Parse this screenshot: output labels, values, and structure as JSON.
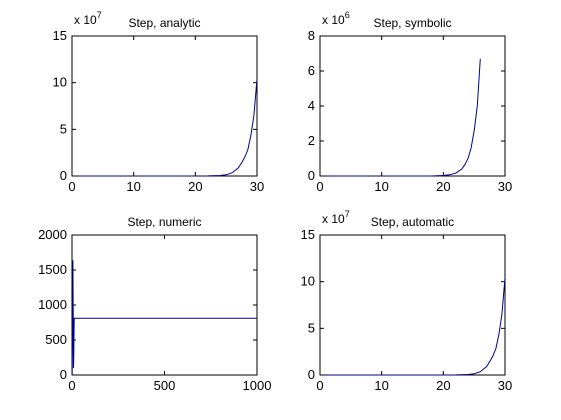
{
  "colors": {
    "line": "#00008b",
    "axis": "#000000",
    "background": "#ffffff"
  },
  "chart_data": [
    {
      "type": "line",
      "title": "Step, analytic",
      "multiplier": "x 10",
      "multiplier_exp": "7",
      "xlim": [
        0,
        30
      ],
      "ylim": [
        0,
        15
      ],
      "xticks": [
        0,
        10,
        20,
        30
      ],
      "yticks": [
        0,
        5,
        10,
        15
      ],
      "grid": false,
      "series": [
        {
          "x": [
            1,
            5,
            10,
            15,
            20,
            22,
            24,
            25,
            26,
            27,
            27.5,
            28,
            28.5,
            29,
            29.5,
            30
          ],
          "y": [
            0,
            0,
            0,
            0,
            0.002,
            0.01,
            0.05,
            0.13,
            0.35,
            0.9,
            1.4,
            2.0,
            2.8,
            4.3,
            6.5,
            10.4
          ]
        }
      ]
    },
    {
      "type": "line",
      "title": "Step, symbolic",
      "multiplier": "x 10",
      "multiplier_exp": "6",
      "xlim": [
        0,
        30
      ],
      "ylim": [
        0,
        8
      ],
      "xticks": [
        0,
        10,
        20,
        30
      ],
      "yticks": [
        0,
        2,
        4,
        6,
        8
      ],
      "grid": false,
      "series": [
        {
          "x": [
            1,
            5,
            10,
            15,
            18,
            19,
            20,
            21,
            22,
            23,
            23.5,
            24,
            24.5,
            25,
            25.5,
            26
          ],
          "y": [
            0,
            0,
            0,
            0,
            0.002,
            0.01,
            0.03,
            0.07,
            0.16,
            0.4,
            0.65,
            1.0,
            1.6,
            2.6,
            4.0,
            6.7
          ]
        }
      ]
    },
    {
      "type": "line",
      "title": "Step, numeric",
      "multiplier": "",
      "multiplier_exp": "",
      "xlim": [
        0,
        1000
      ],
      "ylim": [
        0,
        2000
      ],
      "xticks": [
        0,
        500,
        1000
      ],
      "yticks": [
        0,
        500,
        1000,
        1500,
        2000
      ],
      "grid": false,
      "series": [
        {
          "x": [
            1,
            5,
            8,
            10,
            12,
            15,
            20,
            1000
          ],
          "y": [
            0,
            1640,
            100,
            300,
            810,
            810,
            810,
            810
          ]
        }
      ]
    },
    {
      "type": "line",
      "title": "Step, automatic",
      "multiplier": "x 10",
      "multiplier_exp": "7",
      "xlim": [
        0,
        30
      ],
      "ylim": [
        0,
        15
      ],
      "xticks": [
        0,
        10,
        20,
        30
      ],
      "yticks": [
        0,
        5,
        10,
        15
      ],
      "grid": false,
      "series": [
        {
          "x": [
            1,
            5,
            10,
            15,
            20,
            22,
            24,
            25,
            26,
            27,
            27.5,
            28,
            28.5,
            29,
            29.5,
            30
          ],
          "y": [
            0,
            0,
            0,
            0,
            0.002,
            0.01,
            0.05,
            0.13,
            0.35,
            0.9,
            1.4,
            2.0,
            2.8,
            4.3,
            6.5,
            10.4
          ]
        }
      ]
    }
  ]
}
